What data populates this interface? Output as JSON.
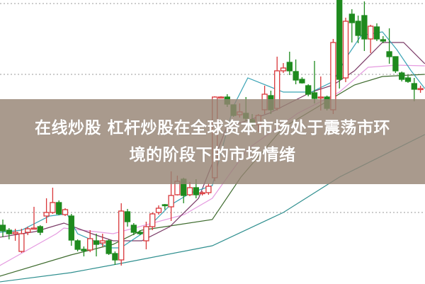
{
  "headline": {
    "line1": "在线炒股 杠杆炒股在全球资本市场处于震荡市环",
    "line2": "境的阶段下的市场情绪"
  },
  "chart_data": {
    "type": "candlestick",
    "title": "",
    "xlabel": "",
    "ylabel": "",
    "ylim": [
      0,
      401
    ],
    "grid": "dotted horizontal",
    "colors": {
      "up": "#d9373a",
      "down": "#1e8a1e",
      "ma5": "#3aa3b5",
      "ma10": "#7a3a66",
      "ma20": "#e59be0",
      "ma30": "#3e6b2e",
      "ma60": "#2f8f8f",
      "grid": "#999999",
      "overlay": "#968474"
    },
    "gridlines": [
      396,
      296,
      101
    ],
    "candles": [
      [
        83,
        91,
        66,
        75
      ],
      [
        76,
        79,
        63,
        71
      ],
      [
        71,
        78,
        61,
        73
      ],
      [
        46,
        78,
        44,
        71
      ],
      [
        73,
        81,
        69,
        78
      ],
      [
        78,
        109,
        77,
        79
      ],
      [
        81,
        83,
        69,
        73
      ],
      [
        96,
        121,
        86,
        101
      ],
      [
        101,
        136,
        99,
        115
      ],
      [
        115,
        118,
        97,
        99
      ],
      [
        98,
        107,
        96,
        105
      ],
      [
        96,
        99,
        54,
        62
      ],
      [
        61,
        63,
        46,
        49
      ],
      [
        49,
        53,
        39,
        47
      ],
      [
        48,
        76,
        45,
        64
      ],
      [
        61,
        71,
        39,
        56
      ],
      [
        58,
        71,
        53,
        61
      ],
      [
        61,
        63,
        41,
        43
      ],
      [
        43,
        46,
        27,
        34
      ],
      [
        34,
        114,
        26,
        103
      ],
      [
        102,
        106,
        81,
        88
      ],
      [
        83,
        86,
        69,
        73
      ],
      [
        73,
        76,
        69,
        71
      ],
      [
        61,
        88,
        49,
        81
      ],
      [
        81,
        101,
        76,
        99
      ],
      [
        101,
        111,
        98,
        107
      ],
      [
        112,
        113,
        105,
        111
      ],
      [
        109,
        159,
        89,
        125
      ],
      [
        126,
        153,
        125,
        145
      ],
      [
        148,
        150,
        114,
        125
      ],
      [
        126,
        144,
        124,
        136
      ],
      [
        136,
        148,
        121,
        126
      ],
      [
        128,
        131,
        125,
        129
      ],
      [
        129,
        142,
        126,
        138
      ],
      [
        150,
        265,
        145,
        264
      ],
      [
        264,
        265,
        262,
        264
      ],
      [
        264,
        268,
        250,
        254
      ],
      [
        253,
        253,
        236,
        238
      ],
      [
        239,
        255,
        235,
        243
      ],
      [
        241,
        264,
        230,
        234
      ],
      [
        232,
        240,
        220,
        225
      ],
      [
        225,
        240,
        215,
        238
      ],
      [
        246,
        280,
        240,
        268
      ],
      [
        266,
        273,
        240,
        246
      ],
      [
        248,
        321,
        245,
        301
      ],
      [
        301,
        312,
        298,
        305
      ],
      [
        313,
        328,
        295,
        301
      ],
      [
        300,
        317,
        282,
        288
      ],
      [
        289,
        292,
        283,
        284
      ],
      [
        280,
        282,
        265,
        268
      ],
      [
        270,
        315,
        255,
        262
      ],
      [
        263,
        293,
        245,
        264
      ],
      [
        264,
        266,
        245,
        248
      ],
      [
        246,
        346,
        240,
        341
      ],
      [
        401,
        401,
        276,
        289
      ],
      [
        291,
        376,
        285,
        371
      ],
      [
        381,
        388,
        341,
        369
      ],
      [
        371,
        379,
        340,
        351
      ],
      [
        379,
        399,
        329,
        346
      ],
      [
        346,
        366,
        326,
        364
      ],
      [
        363,
        368,
        343,
        346
      ],
      [
        345,
        350,
        340,
        343
      ],
      [
        328,
        361,
        311,
        321
      ],
      [
        321,
        321,
        298,
        301
      ],
      [
        298,
        300,
        286,
        289
      ],
      [
        291,
        294,
        284,
        286
      ],
      [
        283,
        291,
        258,
        275
      ],
      [
        275,
        280,
        270,
        276
      ]
    ],
    "moving_averages": [
      {
        "key": "ma60",
        "points": [
          [
            -0.5,
            3
          ],
          [
            10.9,
            16
          ],
          [
            18.9,
            29
          ],
          [
            33.6,
            54
          ],
          [
            45,
            101
          ],
          [
            54,
            151
          ],
          [
            67.7,
            211
          ]
        ]
      },
      {
        "key": "ma30",
        "points": [
          [
            -0.5,
            11
          ],
          [
            10.9,
            41
          ],
          [
            17.7,
            56
          ],
          [
            22.3,
            76
          ],
          [
            33.6,
            91
          ],
          [
            38.2,
            151
          ],
          [
            45,
            221
          ],
          [
            56.4,
            281
          ],
          [
            60.9,
            293
          ],
          [
            67.7,
            296
          ]
        ]
      },
      {
        "key": "ma20",
        "points": [
          [
            -0.5,
            26
          ],
          [
            8.6,
            71
          ],
          [
            9.8,
            79
          ],
          [
            17.7,
            71
          ],
          [
            29.1,
            98
          ],
          [
            33.6,
            121
          ],
          [
            39.3,
            191
          ],
          [
            47.3,
            241
          ],
          [
            54,
            271
          ],
          [
            58.6,
            306
          ],
          [
            63.2,
            309
          ],
          [
            67.7,
            308
          ]
        ]
      },
      {
        "key": "ma10",
        "points": [
          [
            -0.5,
            66
          ],
          [
            5.2,
            74
          ],
          [
            9.8,
            86
          ],
          [
            14.3,
            71
          ],
          [
            17.7,
            61
          ],
          [
            22.3,
            61
          ],
          [
            26.8,
            81
          ],
          [
            31.4,
            121
          ],
          [
            35.9,
            221
          ],
          [
            42.7,
            241
          ],
          [
            49.5,
            271
          ],
          [
            53,
            281
          ],
          [
            56.4,
            301
          ],
          [
            60.9,
            341
          ],
          [
            64.3,
            341
          ],
          [
            67.7,
            311
          ]
        ]
      },
      {
        "key": "ma5",
        "points": [
          [
            -0.5,
            73
          ],
          [
            3,
            76
          ],
          [
            7.5,
            96
          ],
          [
            10.3,
            99
          ],
          [
            12,
            71
          ],
          [
            17.2,
            51
          ],
          [
            18.9,
            51
          ],
          [
            22.3,
            71
          ],
          [
            26.8,
            111
          ],
          [
            30.2,
            129
          ],
          [
            33.6,
            139
          ],
          [
            37,
            251
          ],
          [
            39.3,
            291
          ],
          [
            45,
            271
          ],
          [
            49.5,
            271
          ],
          [
            53,
            286
          ],
          [
            55.2,
            321
          ],
          [
            57.5,
            351
          ],
          [
            60.9,
            356
          ],
          [
            63.2,
            331
          ],
          [
            65.5,
            301
          ],
          [
            67.7,
            276
          ]
        ]
      }
    ]
  }
}
